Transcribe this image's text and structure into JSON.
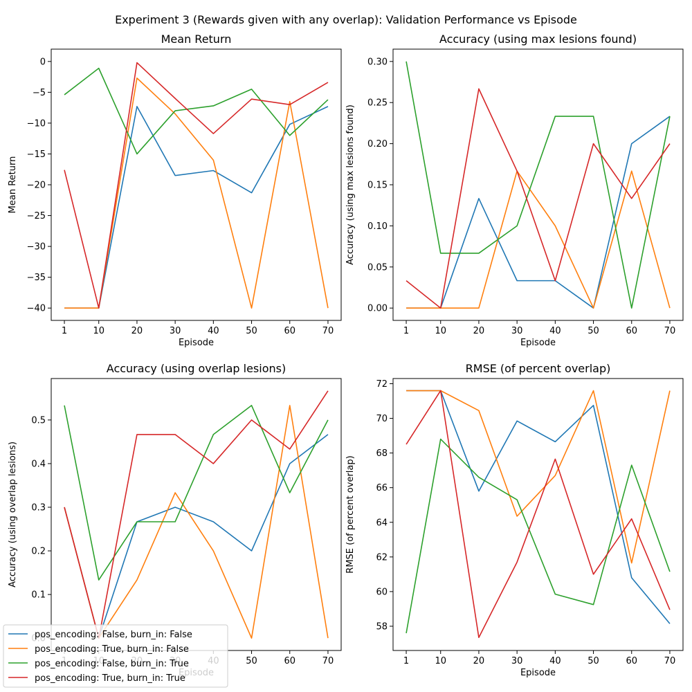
{
  "figure": {
    "suptitle": "Experiment 3 (Rewards given with any overlap): Validation Performance vs Episode"
  },
  "colors": {
    "series_0": "#1f77b4",
    "series_1": "#ff7f0e",
    "series_2": "#2ca02c",
    "series_3": "#d62728"
  },
  "legend": {
    "placement": "lower-left",
    "entries": [
      "pos_encoding: False, burn_in: False",
      "pos_encoding: True, burn_in: False",
      "pos_encoding: False, burn_in: True",
      "pos_encoding: True, burn_in: True"
    ]
  },
  "chart_data": [
    {
      "type": "line",
      "title": "Mean Return",
      "xlabel": "Episode",
      "ylabel": "Mean Return",
      "x": [
        1,
        10,
        20,
        30,
        40,
        50,
        60,
        70
      ],
      "xticks": [
        1,
        10,
        20,
        30,
        40,
        50,
        60,
        70
      ],
      "yticks": [
        0,
        -5,
        -10,
        -15,
        -20,
        -25,
        -30,
        -35,
        -40
      ],
      "ytick_labels": [
        "0",
        "−5",
        "−10",
        "−15",
        "−20",
        "−25",
        "−30",
        "−35",
        "−40"
      ],
      "xlim": [
        -2.45,
        73.45
      ],
      "ylim": [
        -42.0,
        2.0
      ],
      "grid": false,
      "series": [
        {
          "name": "pos_encoding: False, burn_in: False",
          "values": [
            -40,
            -40,
            -7.3,
            -18.5,
            -17.7,
            -21.3,
            -10.2,
            -7.3
          ]
        },
        {
          "name": "pos_encoding: True, burn_in: False",
          "values": [
            -40,
            -40,
            -2.7,
            -8.5,
            -16,
            -40,
            -6.5,
            -40
          ]
        },
        {
          "name": "pos_encoding: False, burn_in: True",
          "values": [
            -5.4,
            -1.1,
            -15,
            -8,
            -7.2,
            -4.5,
            -12,
            -6.2
          ]
        },
        {
          "name": "pos_encoding: True, burn_in: True",
          "values": [
            -17.6,
            -40,
            -0.2,
            -6,
            -11.7,
            -6.1,
            -7,
            -3.4
          ]
        }
      ]
    },
    {
      "type": "line",
      "title": "Accuracy (using max lesions found)",
      "xlabel": "Episode",
      "ylabel": "Accuracy (using max lesions found)",
      "x": [
        1,
        10,
        20,
        30,
        40,
        50,
        60,
        70
      ],
      "xticks": [
        1,
        10,
        20,
        30,
        40,
        50,
        60,
        70
      ],
      "yticks": [
        0.0,
        0.05,
        0.1,
        0.15,
        0.2,
        0.25,
        0.3
      ],
      "ytick_labels": [
        "0.00",
        "0.05",
        "0.10",
        "0.15",
        "0.20",
        "0.25",
        "0.30"
      ],
      "xlim": [
        -2.45,
        73.45
      ],
      "ylim": [
        -0.015,
        0.315
      ],
      "grid": false,
      "series": [
        {
          "name": "pos_encoding: False, burn_in: False",
          "values": [
            0,
            0,
            0.1333,
            0.0333,
            0.0333,
            0,
            0.2,
            0.2333
          ]
        },
        {
          "name": "pos_encoding: True, burn_in: False",
          "values": [
            0,
            0,
            0,
            0.1667,
            0.1,
            0,
            0.1667,
            0
          ]
        },
        {
          "name": "pos_encoding: False, burn_in: True",
          "values": [
            0.3,
            0.0667,
            0.0667,
            0.1,
            0.2333,
            0.2333,
            0,
            0.2333
          ]
        },
        {
          "name": "pos_encoding: True, burn_in: True",
          "values": [
            0.0333,
            0,
            0.2667,
            0.1667,
            0.0333,
            0.2,
            0.1333,
            0.2
          ]
        }
      ]
    },
    {
      "type": "line",
      "title": "Accuracy (using overlap lesions)",
      "xlabel": "Episode",
      "ylabel": "Accuracy (using overlap lesions)",
      "x": [
        1,
        10,
        20,
        30,
        40,
        50,
        60,
        70
      ],
      "xticks": [
        1,
        10,
        20,
        30,
        40,
        50,
        60,
        70
      ],
      "yticks": [
        0.0,
        0.1,
        0.2,
        0.3,
        0.4,
        0.5
      ],
      "ytick_labels": [
        "0.0",
        "0.1",
        "0.2",
        "0.3",
        "0.4",
        "0.5"
      ],
      "xlim": [
        -2.45,
        73.45
      ],
      "ylim": [
        -0.0283,
        0.595
      ],
      "grid": false,
      "series": [
        {
          "name": "pos_encoding: False, burn_in: False",
          "values": [
            0.3,
            0.0,
            0.2667,
            0.3,
            0.2667,
            0.2,
            0.4,
            0.4667
          ]
        },
        {
          "name": "pos_encoding: True, burn_in: False",
          "values": [
            0.3,
            0.0,
            0.1333,
            0.3333,
            0.2,
            0,
            0.5333,
            0
          ]
        },
        {
          "name": "pos_encoding: False, burn_in: True",
          "values": [
            0.5333,
            0.1333,
            0.2667,
            0.2667,
            0.4667,
            0.5333,
            0.3333,
            0.5
          ]
        },
        {
          "name": "pos_encoding: True, burn_in: True",
          "values": [
            0.3,
            0.0,
            0.4667,
            0.4667,
            0.4,
            0.5,
            0.4333,
            0.5667
          ]
        }
      ]
    },
    {
      "type": "line",
      "title": "RMSE (of percent overlap)",
      "xlabel": "Episode",
      "ylabel": "RMSE (of percent overlap)",
      "x": [
        1,
        10,
        20,
        30,
        40,
        50,
        60,
        70
      ],
      "xticks": [
        1,
        10,
        20,
        30,
        40,
        50,
        60,
        70
      ],
      "yticks": [
        58,
        60,
        62,
        64,
        66,
        68,
        70,
        72
      ],
      "ytick_labels": [
        "58",
        "60",
        "62",
        "64",
        "66",
        "68",
        "70",
        "72"
      ],
      "xlim": [
        -2.45,
        73.45
      ],
      "ylim": [
        56.6,
        72.3
      ],
      "grid": false,
      "series": [
        {
          "name": "pos_encoding: False, burn_in: False",
          "values": [
            71.6,
            71.6,
            65.8,
            69.85,
            68.65,
            70.75,
            60.8,
            58.15
          ]
        },
        {
          "name": "pos_encoding: True, burn_in: False",
          "values": [
            71.6,
            71.6,
            70.45,
            64.35,
            66.7,
            71.6,
            61.65,
            71.6
          ]
        },
        {
          "name": "pos_encoding: False, burn_in: True",
          "values": [
            57.6,
            68.8,
            66.6,
            65.3,
            59.85,
            59.25,
            67.3,
            61.15
          ]
        },
        {
          "name": "pos_encoding: True, burn_in: True",
          "values": [
            68.5,
            71.6,
            57.35,
            61.7,
            67.65,
            61.0,
            64.2,
            58.95
          ]
        }
      ]
    }
  ]
}
